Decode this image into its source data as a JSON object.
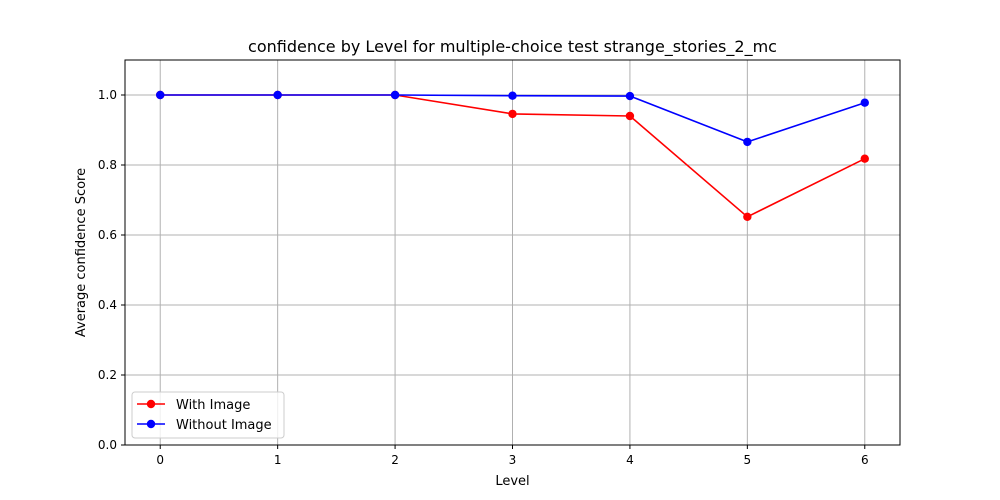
{
  "chart_data": {
    "type": "line",
    "title": "confidence by Level for multiple-choice test strange_stories_2_mc",
    "xlabel": "Level",
    "ylabel": "Average confidence Score",
    "x": [
      0,
      1,
      2,
      3,
      4,
      5,
      6
    ],
    "xticks": [
      "0",
      "1",
      "2",
      "3",
      "4",
      "5",
      "6"
    ],
    "yticks": [
      "0.0",
      "0.2",
      "0.4",
      "0.6",
      "0.8",
      "1.0"
    ],
    "xlim": [
      -0.3,
      6.3
    ],
    "ylim": [
      0.0,
      1.1
    ],
    "grid": true,
    "legend_position": "lower-left",
    "series": [
      {
        "name": "With Image",
        "color": "#ff0000",
        "marker": "circle",
        "values": [
          1.0,
          1.0,
          1.0,
          0.946,
          0.94,
          0.652,
          0.818
        ]
      },
      {
        "name": "Without Image",
        "color": "#0000ff",
        "marker": "circle",
        "values": [
          1.0,
          1.0,
          1.0,
          0.998,
          0.997,
          0.866,
          0.978
        ]
      }
    ]
  }
}
